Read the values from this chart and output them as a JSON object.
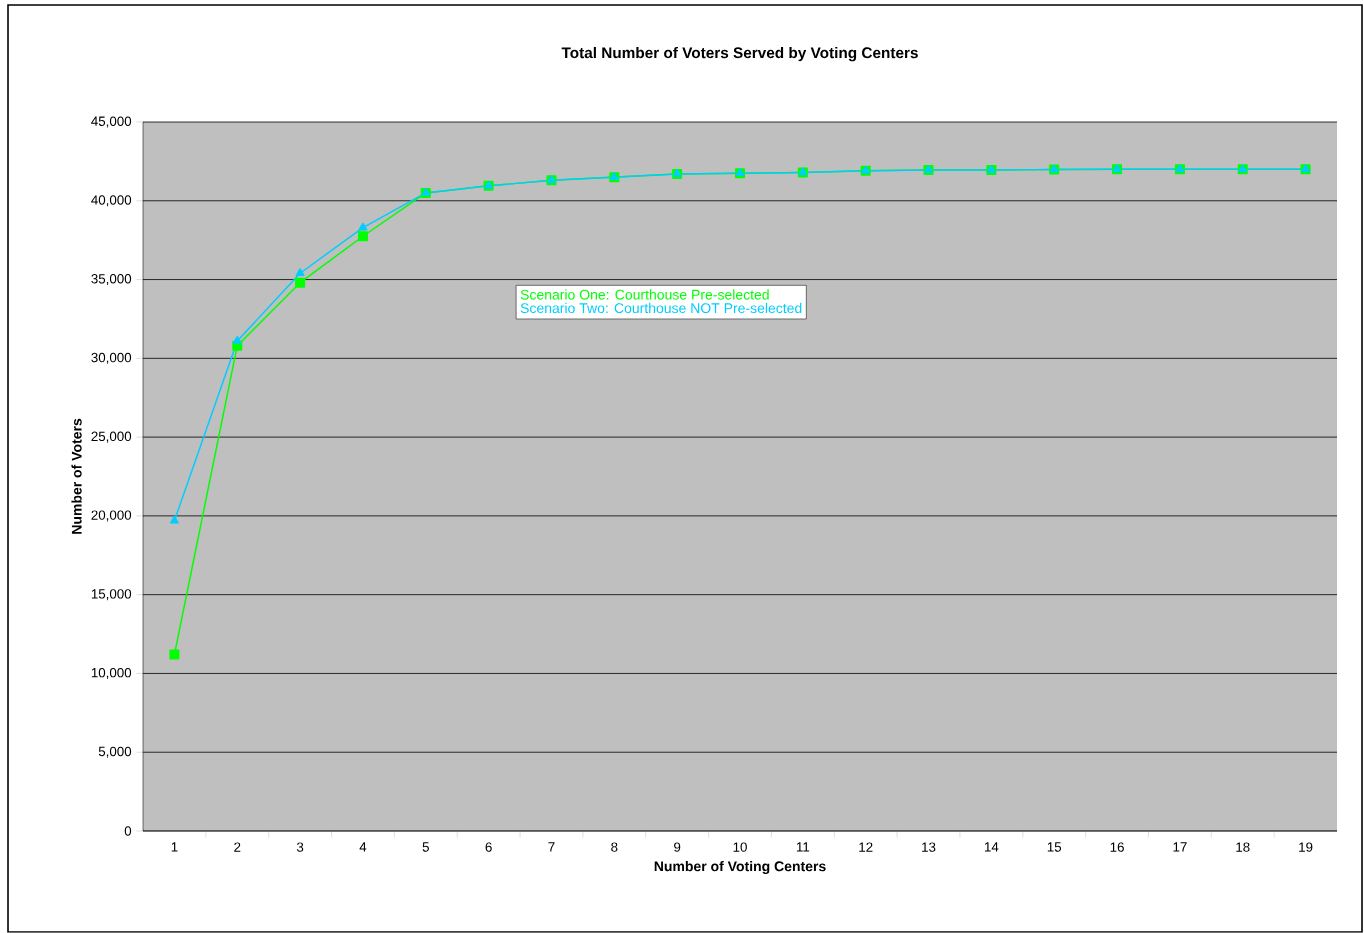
{
  "chart_data": {
    "type": "line",
    "title": "Total Number of Voters Served by Voting Centers",
    "xlabel": "Number of Voting Centers",
    "ylabel": "Number of Voters",
    "categories": [
      "1",
      "2",
      "3",
      "4",
      "5",
      "6",
      "7",
      "8",
      "9",
      "10",
      "11",
      "12",
      "13",
      "14",
      "15",
      "16",
      "17",
      "18",
      "19"
    ],
    "series": [
      {
        "name": "Scenario One: Courthouse Pre-selected",
        "color": "#00ff00",
        "marker": "square",
        "values": [
          11200,
          30800,
          34800,
          37750,
          40500,
          40950,
          41300,
          41500,
          41700,
          41750,
          41800,
          41900,
          41950,
          41950,
          41980,
          42000,
          42000,
          42000,
          42000
        ]
      },
      {
        "name": "Scenario Two: Courthouse NOT Pre-selected",
        "color": "#00ccff",
        "marker": "triangle",
        "values": [
          19700,
          31100,
          35400,
          38300,
          40500,
          40950,
          41300,
          41500,
          41700,
          41750,
          41800,
          41900,
          41950,
          41950,
          41980,
          42000,
          42000,
          42000,
          42000
        ]
      }
    ],
    "ylim": [
      0,
      45000
    ],
    "yticks": [
      {
        "value": 0,
        "label": "0"
      },
      {
        "value": 5000,
        "label": "5,000"
      },
      {
        "value": 10000,
        "label": "10,000"
      },
      {
        "value": 15000,
        "label": "15,000"
      },
      {
        "value": 20000,
        "label": "20,000"
      },
      {
        "value": 25000,
        "label": "25,000"
      },
      {
        "value": 30000,
        "label": "30,000"
      },
      {
        "value": 35000,
        "label": "35,000"
      },
      {
        "value": 40000,
        "label": "40,000"
      },
      {
        "value": 45000,
        "label": "45,000"
      }
    ],
    "grid": "y",
    "legend": "top",
    "line_style": "solid"
  }
}
